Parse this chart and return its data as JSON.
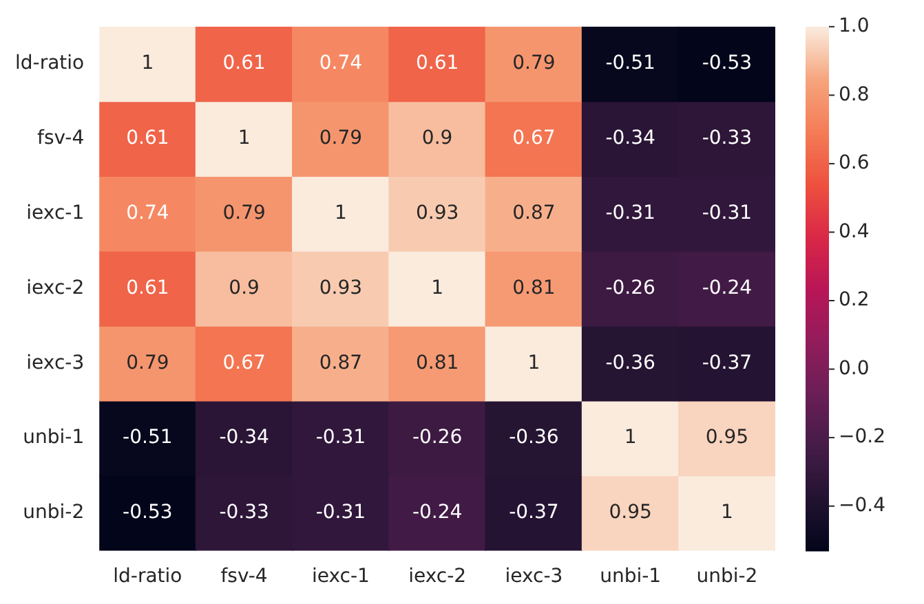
{
  "chart_data": {
    "type": "heatmap",
    "categories": [
      "ld-ratio",
      "fsv-4",
      "iexc-1",
      "iexc-2",
      "iexc-3",
      "unbi-1",
      "unbi-2"
    ],
    "y_categories": [
      "ld-ratio",
      "fsv-4",
      "iexc-1",
      "iexc-2",
      "iexc-3",
      "unbi-1",
      "unbi-2"
    ],
    "cells": [
      [
        1,
        0.61,
        0.74,
        0.61,
        0.79,
        -0.51,
        -0.53
      ],
      [
        0.61,
        1,
        0.79,
        0.9,
        0.67,
        -0.34,
        -0.33
      ],
      [
        0.74,
        0.79,
        1,
        0.93,
        0.87,
        -0.31,
        -0.31
      ],
      [
        0.61,
        0.9,
        0.93,
        1,
        0.81,
        -0.26,
        -0.24
      ],
      [
        0.79,
        0.67,
        0.87,
        0.81,
        1,
        -0.36,
        -0.37
      ],
      [
        -0.51,
        -0.34,
        -0.31,
        -0.26,
        -0.36,
        1,
        0.95
      ],
      [
        -0.53,
        -0.33,
        -0.31,
        -0.24,
        -0.37,
        0.95,
        1
      ]
    ],
    "data_labels": true,
    "clim": [
      -0.53,
      1.0
    ],
    "cticks": [
      {
        "value": -0.4,
        "label": "−0.4"
      },
      {
        "value": -0.2,
        "label": "−0.2"
      },
      {
        "value": 0,
        "label": "0.0"
      },
      {
        "value": 0.2,
        "label": "0.2"
      },
      {
        "value": 0.4,
        "label": "0.4"
      },
      {
        "value": 0.6,
        "label": "0.6"
      },
      {
        "value": 0.8,
        "label": "0.8"
      },
      {
        "value": 1,
        "label": "1.0"
      }
    ]
  }
}
